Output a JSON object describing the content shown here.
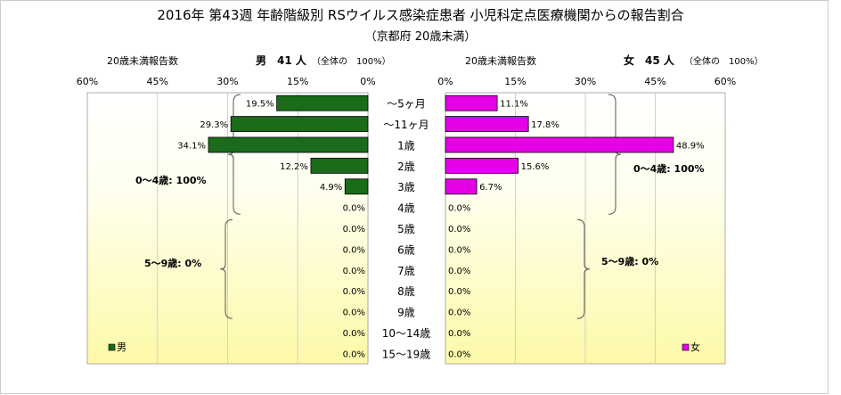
{
  "title": "2016年 第43週 年齢階級別 RSウイルス感染症患者 小児科定点医療機関からの報告割合",
  "subtitle": "（京都府 20歳未満）",
  "colors": {
    "male": "#1a6b1a",
    "female": "#e600e6",
    "bg_top": "#ffffff",
    "bg_bottom": "#fdf9a8"
  },
  "chart_data": [
    {
      "type": "bar",
      "orientation": "horizontal",
      "side": "left",
      "series": [
        {
          "name": "男",
          "values": [
            19.5,
            29.3,
            34.1,
            12.2,
            4.9,
            0.0,
            0.0,
            0.0,
            0.0,
            0.0,
            0.0,
            0.0,
            0.0
          ]
        }
      ],
      "categories": [
        "〜5ヶ月",
        "〜11ヶ月",
        "1歳",
        "2歳",
        "3歳",
        "4歳",
        "5歳",
        "6歳",
        "7歳",
        "8歳",
        "9歳",
        "10〜14歳",
        "15〜19歳"
      ],
      "value_labels": [
        "19.5%",
        "29.3%",
        "34.1%",
        "12.2%",
        "4.9%",
        "0.0%",
        "0.0%",
        "0.0%",
        "0.0%",
        "0.0%",
        "0.0%",
        "0.0%",
        "0.0%"
      ],
      "xlim": [
        0,
        60
      ],
      "ticks": [
        "60%",
        "45%",
        "30%",
        "15%",
        "0%"
      ],
      "header_left": "20歳未満報告数",
      "header_right": "男　41 人",
      "header_note": "（全体の　100%）",
      "legend": "男",
      "brackets": [
        {
          "label": "0〜4歳: 100%"
        },
        {
          "label": "5〜9歳: 0%"
        }
      ]
    },
    {
      "type": "bar",
      "orientation": "horizontal",
      "side": "right",
      "series": [
        {
          "name": "女",
          "values": [
            11.1,
            17.8,
            48.9,
            15.6,
            6.7,
            0.0,
            0.0,
            0.0,
            0.0,
            0.0,
            0.0,
            0.0,
            0.0
          ]
        }
      ],
      "value_labels": [
        "11.1%",
        "17.8%",
        "48.9%",
        "15.6%",
        "6.7%",
        "0.0%",
        "0.0%",
        "0.0%",
        "0.0%",
        "0.0%",
        "0.0%",
        "0.0%",
        "0.0%"
      ],
      "xlim": [
        0,
        60
      ],
      "ticks": [
        "0%",
        "15%",
        "30%",
        "45%",
        "60%"
      ],
      "header_left": "20歳未満報告数",
      "header_right": "女　45 人",
      "header_note": "（全体の　100%）",
      "legend": "女",
      "brackets": [
        {
          "label": "0〜4歳: 100%"
        },
        {
          "label": "5〜9歳: 0%"
        }
      ]
    }
  ]
}
